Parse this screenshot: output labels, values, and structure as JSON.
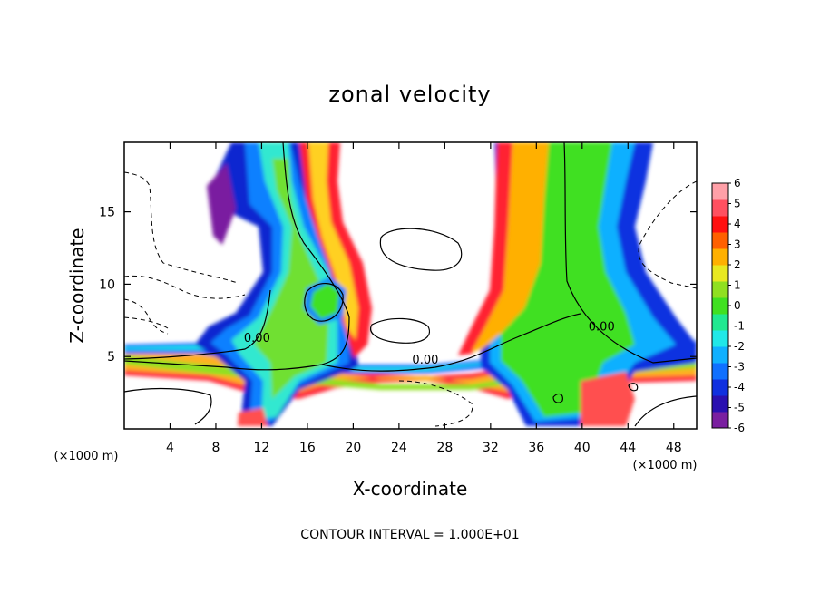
{
  "chart_data": {
    "type": "heatmap",
    "title": "zonal velocity",
    "xlabel": "X-coordinate",
    "ylabel": "Z-coordinate",
    "x_unit_left": "(×1000 m)",
    "x_unit_right": "(×1000 m)",
    "xlim": [
      0,
      50
    ],
    "ylim": [
      0,
      19.8
    ],
    "x_ticks": [
      4,
      8,
      12,
      16,
      20,
      24,
      28,
      32,
      36,
      40,
      44,
      48
    ],
    "y_ticks": [
      5,
      10,
      15
    ],
    "colorbar": {
      "min": -6,
      "max": 6,
      "ticks": [
        6,
        5,
        4,
        3,
        2,
        1,
        0,
        -1,
        -2,
        -3,
        -4,
        -5,
        -6
      ],
      "colors": [
        "#7a1fa0",
        "#2a10b0",
        "#1030e0",
        "#1070ff",
        "#10b0ff",
        "#20e8e8",
        "#20e890",
        "#40e020",
        "#90e020",
        "#e8e820",
        "#ffb000",
        "#ff6000",
        "#ff1010",
        "#ff5060",
        "#ffa0a8"
      ]
    },
    "contour_labels": [
      {
        "text": "0.00",
        "x": 11.6,
        "z": 6.0
      },
      {
        "text": "0.00",
        "x": 26.3,
        "z": 4.5
      },
      {
        "text": "0.00",
        "x": 41.7,
        "z": 6.8
      }
    ],
    "footer": "CONTOUR INTERVAL = 1.000E+01"
  }
}
